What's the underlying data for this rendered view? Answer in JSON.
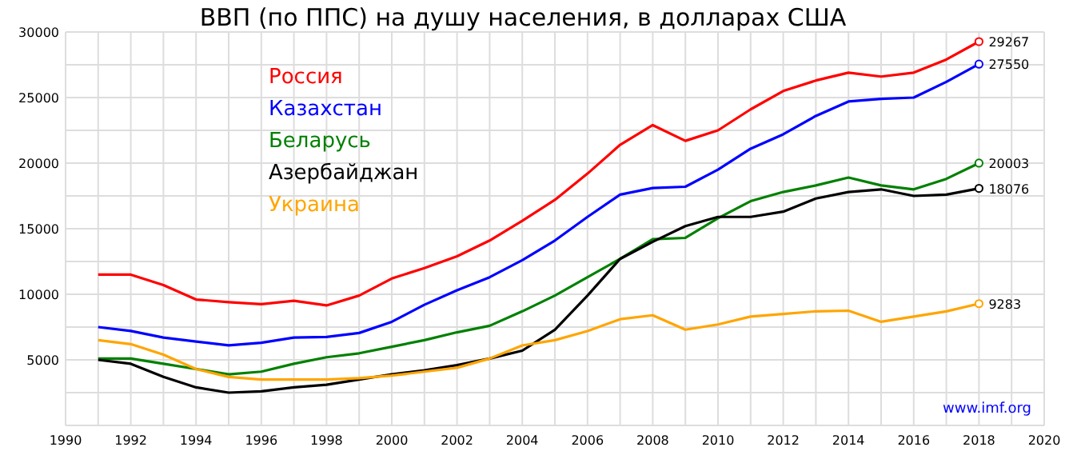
{
  "chart_data": {
    "type": "line",
    "title": "ВВП (по ППС) на душу населения, в долларах США",
    "x": [
      1991,
      1992,
      1993,
      1994,
      1995,
      1996,
      1997,
      1998,
      1999,
      2000,
      2001,
      2002,
      2003,
      2004,
      2005,
      2006,
      2007,
      2008,
      2009,
      2010,
      2011,
      2012,
      2013,
      2014,
      2015,
      2016,
      2017,
      2018
    ],
    "series": [
      {
        "name": "Россия",
        "color": "#ff0000",
        "values": [
          11500,
          11500,
          10700,
          9600,
          9400,
          9250,
          9500,
          9150,
          9900,
          11200,
          12000,
          12900,
          14100,
          15600,
          17200,
          19200,
          21400,
          22900,
          21700,
          22500,
          24100,
          25500,
          26300,
          26900,
          26600,
          26900,
          27900,
          29267
        ],
        "value_labels": [
          null,
          null,
          null,
          null,
          null,
          null,
          null,
          null,
          null,
          null,
          null,
          null,
          null,
          null,
          null,
          null,
          null,
          null,
          null,
          null,
          null,
          null,
          null,
          null,
          null,
          null,
          null,
          "29267"
        ]
      },
      {
        "name": "Казахстан",
        "color": "#0000ff",
        "values": [
          7500,
          7200,
          6700,
          6400,
          6100,
          6300,
          6700,
          6750,
          7050,
          7900,
          9200,
          10300,
          11300,
          12600,
          14100,
          15900,
          17600,
          18100,
          18200,
          19500,
          21100,
          22200,
          23600,
          24700,
          24900,
          25000,
          26200,
          27550
        ],
        "value_labels": [
          null,
          null,
          null,
          null,
          null,
          null,
          null,
          null,
          null,
          null,
          null,
          null,
          null,
          null,
          null,
          null,
          null,
          null,
          null,
          null,
          null,
          null,
          null,
          null,
          null,
          null,
          null,
          "27550"
        ]
      },
      {
        "name": "Беларусь",
        "color": "#008000",
        "values": [
          5100,
          5100,
          4700,
          4300,
          3900,
          4100,
          4700,
          5200,
          5500,
          6000,
          6500,
          7100,
          7600,
          8700,
          9900,
          11300,
          12700,
          14200,
          14300,
          15800,
          17100,
          17800,
          18300,
          18900,
          18300,
          18000,
          18800,
          20003
        ],
        "value_labels": [
          null,
          null,
          null,
          null,
          null,
          null,
          null,
          null,
          null,
          null,
          null,
          null,
          null,
          null,
          null,
          null,
          null,
          null,
          null,
          null,
          null,
          null,
          null,
          null,
          null,
          null,
          null,
          "20003"
        ]
      },
      {
        "name": "Азербайджан",
        "color": "#000000",
        "values": [
          5000,
          4700,
          3700,
          2900,
          2500,
          2600,
          2900,
          3100,
          3500,
          3900,
          4200,
          4600,
          5100,
          5700,
          7300,
          9900,
          12700,
          14000,
          15200,
          15900,
          15900,
          16300,
          17300,
          17800,
          18000,
          17500,
          17600,
          18076
        ],
        "value_labels": [
          null,
          null,
          null,
          null,
          null,
          null,
          null,
          null,
          null,
          null,
          null,
          null,
          null,
          null,
          null,
          null,
          null,
          null,
          null,
          null,
          null,
          null,
          null,
          null,
          null,
          null,
          null,
          "18076"
        ]
      },
      {
        "name": "Украина",
        "color": "#ffa500",
        "values": [
          6500,
          6200,
          5400,
          4300,
          3700,
          3500,
          3500,
          3500,
          3600,
          3800,
          4100,
          4400,
          5100,
          6100,
          6500,
          7200,
          8100,
          8400,
          7300,
          7700,
          8300,
          8500,
          8700,
          8750,
          7900,
          8300,
          8700,
          9283
        ],
        "value_labels": [
          null,
          null,
          null,
          null,
          null,
          null,
          null,
          null,
          null,
          null,
          null,
          null,
          null,
          null,
          null,
          null,
          null,
          null,
          null,
          null,
          null,
          null,
          null,
          null,
          null,
          null,
          null,
          "9283"
        ]
      }
    ],
    "xlim": [
      1990,
      2020
    ],
    "xticks": [
      1990,
      {
        "value": 1991,
        "label": null
      },
      1992,
      {
        "value": 1993,
        "label": null
      },
      1994,
      {
        "value": 1995,
        "label": null
      },
      1996,
      {
        "value": 1997,
        "label": null
      },
      1998,
      {
        "value": 1999,
        "label": null
      },
      2000,
      {
        "value": 2001,
        "label": null
      },
      2002,
      {
        "value": 2003,
        "label": null
      },
      2004,
      {
        "value": 2005,
        "label": null
      },
      2006,
      {
        "value": 2007,
        "label": null
      },
      2008,
      {
        "value": 2009,
        "label": null
      },
      2010,
      {
        "value": 2011,
        "label": null
      },
      2012,
      {
        "value": 2013,
        "label": null
      },
      2014,
      {
        "value": 2015,
        "label": null
      },
      2016,
      {
        "value": 2017,
        "label": null
      },
      2018,
      {
        "value": 2019,
        "label": null
      },
      2020
    ],
    "ylim": [
      0,
      30000
    ],
    "yticks": [
      {
        "value": 0,
        "label": null
      },
      {
        "value": 2500,
        "label": null
      },
      5000,
      {
        "value": 7500,
        "label": null
      },
      10000,
      {
        "value": 12500,
        "label": null
      },
      15000,
      {
        "value": 17500,
        "label": null
      },
      20000,
      {
        "value": 22500,
        "label": null
      },
      25000,
      {
        "value": 27500,
        "label": null
      },
      30000
    ],
    "grid": true,
    "legend": "top left",
    "annotations": [
      "www.imf.org"
    ]
  }
}
